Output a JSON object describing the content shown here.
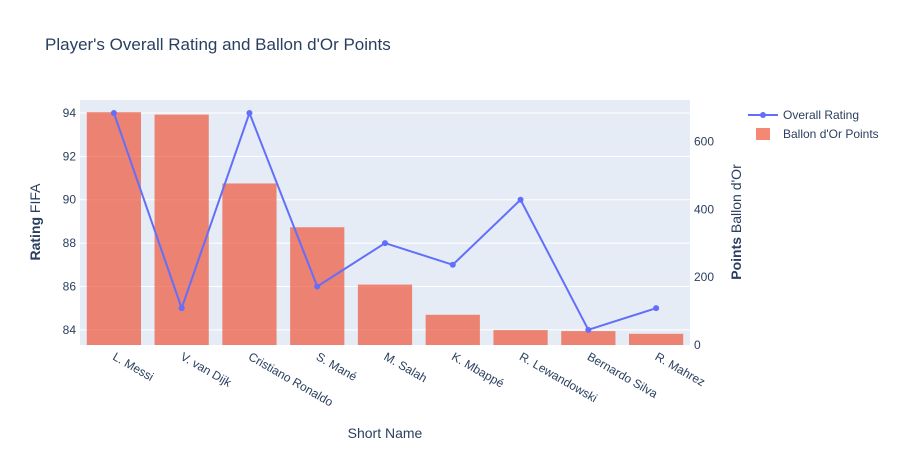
{
  "chart_data": {
    "type": "bar+line",
    "title": "Player's Overall Rating and Ballon d'Or Points",
    "xlabel": "Short Name",
    "ylabel_left": {
      "bold": "Rating",
      "rest": "FIFA"
    },
    "ylabel_right": {
      "bold": "Points",
      "rest": "Ballon d'Or"
    },
    "categories": [
      "L. Messi",
      "V. van Dijk",
      "Cristiano Ronaldo",
      "S. Mané",
      "M. Salah",
      "K. Mbappé",
      "R. Lewandowski",
      "Bernardo Silva",
      "R. Mahrez"
    ],
    "series": [
      {
        "name": "Overall Rating",
        "type": "line",
        "axis": "left",
        "color": "#636efa",
        "values": [
          94,
          85,
          94,
          86,
          88,
          87,
          90,
          84,
          85
        ]
      },
      {
        "name": "Ballon d'Or Points",
        "type": "bar",
        "axis": "right",
        "color": "#ef553b",
        "values": [
          686,
          679,
          476,
          347,
          178,
          89,
          44,
          41,
          33
        ]
      }
    ],
    "left_axis": {
      "range": [
        83.3,
        94.6
      ],
      "ticks": [
        84,
        86,
        88,
        90,
        92,
        94
      ]
    },
    "right_axis": {
      "range": [
        0,
        722
      ],
      "ticks": [
        0,
        200,
        400,
        600
      ]
    },
    "grid": true,
    "legend_position": "top-right"
  },
  "colors": {
    "plot_background": "#e5ecf6",
    "grid": "#ffffff",
    "text": "#2a3f5f"
  }
}
